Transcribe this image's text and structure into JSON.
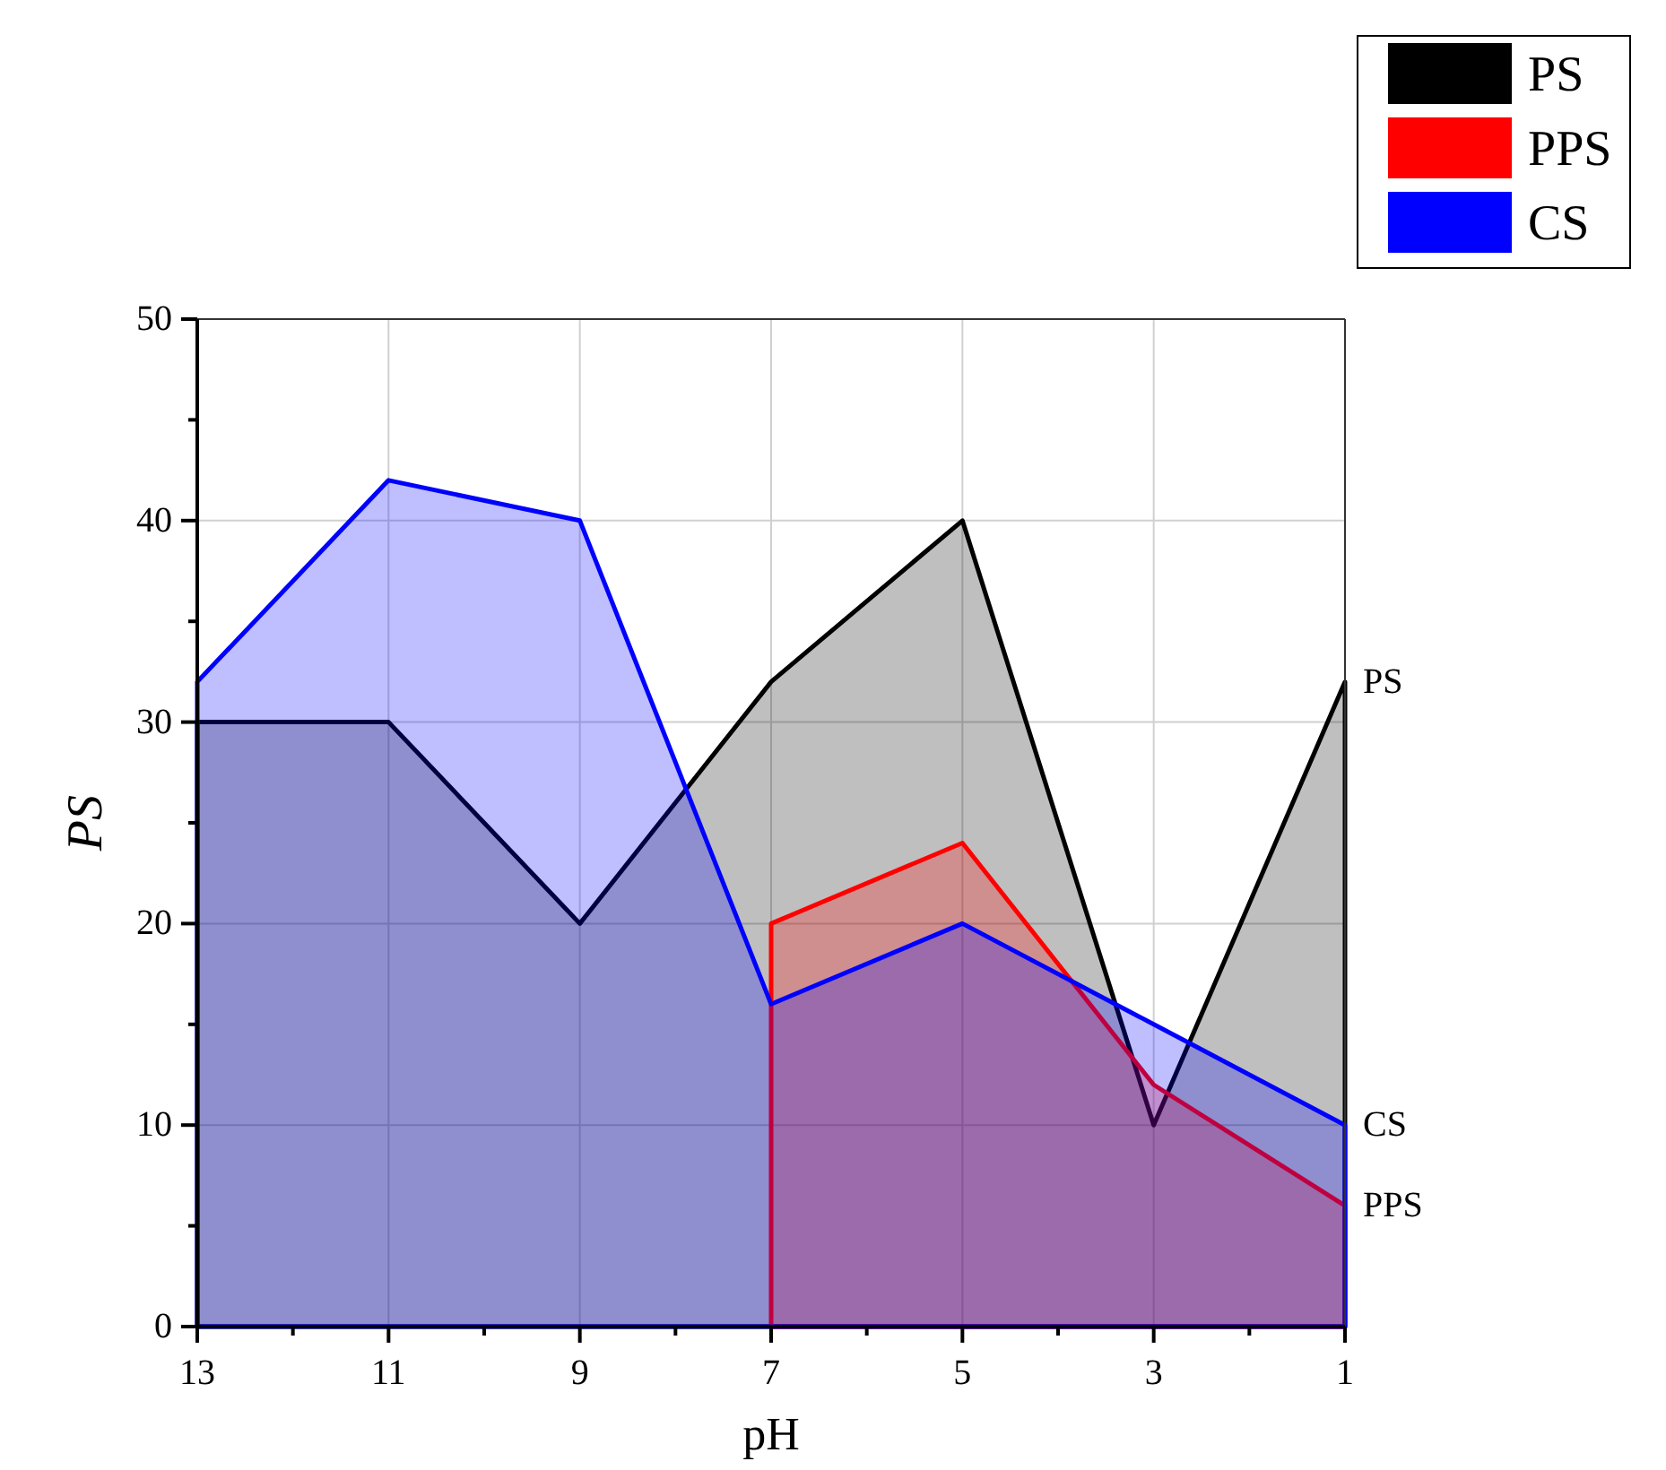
{
  "chart_data": {
    "type": "area",
    "x": [
      1,
      3,
      5,
      7,
      9,
      11,
      13
    ],
    "xlabel": "pH",
    "ylabel": "PS",
    "series": [
      {
        "name": "PS",
        "color": "#000000",
        "values": [
          32,
          10,
          40,
          32,
          20,
          30,
          30
        ]
      },
      {
        "name": "PPS",
        "color": "#ff0000",
        "values": [
          6,
          12,
          24,
          20,
          null,
          null,
          null
        ]
      },
      {
        "name": "CS",
        "color": "#0000ff",
        "values": [
          10,
          15,
          20,
          16,
          40,
          42,
          32
        ]
      }
    ],
    "xlim": [
      13,
      1
    ],
    "xticks": [
      13,
      {
        "value": 12,
        "label": null
      },
      11,
      {
        "value": 10,
        "label": null
      },
      9,
      {
        "value": 8,
        "label": null
      },
      7,
      {
        "value": 6,
        "label": null
      },
      5,
      {
        "value": 4,
        "label": null
      },
      3,
      {
        "value": 2,
        "label": null
      },
      1
    ],
    "ylim": [
      0,
      50
    ],
    "yticks": [
      0,
      {
        "value": 5,
        "label": null
      },
      10,
      {
        "value": 15,
        "label": null
      },
      20,
      {
        "value": 25,
        "label": null
      },
      30,
      {
        "value": 35,
        "label": null
      },
      40,
      {
        "value": 45,
        "label": null
      },
      50
    ],
    "grid": true,
    "legend": "top right"
  }
}
